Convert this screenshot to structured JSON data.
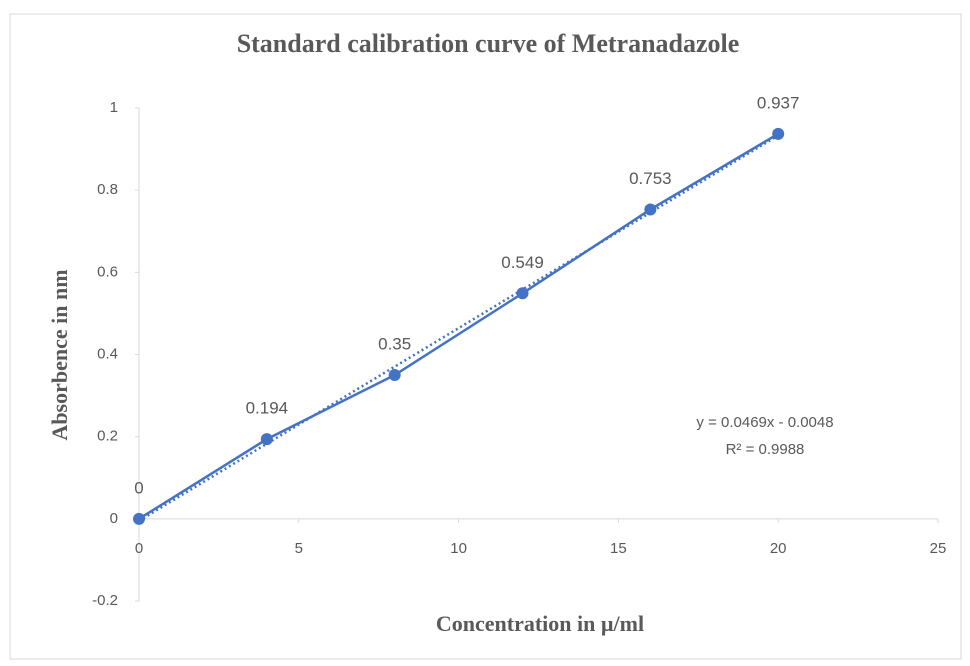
{
  "chart_data": {
    "type": "scatter-line",
    "title": "Standard calibration curve of Metranadazole",
    "x_label": "Concentration in µ/ml",
    "y_label": "Absorbence in nm",
    "x": [
      0,
      4,
      8,
      12,
      16,
      20
    ],
    "values": [
      0,
      0.194,
      0.35,
      0.549,
      0.753,
      0.937
    ],
    "color": "#4472c4",
    "xlim": [
      0,
      25
    ],
    "xticks": [
      0,
      5,
      10,
      15,
      20,
      25
    ],
    "ylim": [
      -0.2,
      1
    ],
    "yticks": [
      -0.2,
      0,
      0.2,
      0.4,
      0.6,
      0.8,
      1
    ],
    "grid": false,
    "trendline": {
      "slope": 0.0469,
      "intercept": -0.0048,
      "style": "dotted",
      "label": "y = 0.0469x - 0.0048",
      "r2_label": "R² = 0.9988"
    }
  }
}
